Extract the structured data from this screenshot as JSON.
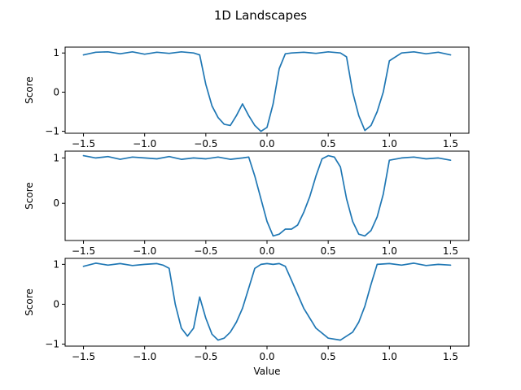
{
  "figure": {
    "title": "1D Landscapes"
  },
  "colors": {
    "series": "#1f77b4"
  },
  "chart_data": [
    {
      "type": "line",
      "xlabel": "",
      "ylabel": "Score",
      "xlim": [
        -1.65,
        1.65
      ],
      "ylim": [
        -1.05,
        1.15
      ],
      "xticks": [
        -1.5,
        -1.0,
        -0.5,
        0.0,
        0.5,
        1.0,
        1.5
      ],
      "xtick_labels": [
        "−1.5",
        "−1.0",
        "−0.5",
        "0.0",
        "0.5",
        "1.0",
        "1.5"
      ],
      "yticks": [
        -1,
        0,
        1
      ],
      "ytick_labels": [
        "−1",
        "0",
        "1"
      ],
      "series": [
        {
          "x": [
            -1.5,
            -1.4,
            -1.3,
            -1.2,
            -1.1,
            -1.0,
            -0.9,
            -0.8,
            -0.7,
            -0.6,
            -0.55,
            -0.5,
            -0.45,
            -0.4,
            -0.35,
            -0.3,
            -0.25,
            -0.2,
            -0.15,
            -0.1,
            -0.05,
            0.0,
            0.05,
            0.1,
            0.15,
            0.2,
            0.3,
            0.4,
            0.5,
            0.6,
            0.65,
            0.7,
            0.75,
            0.8,
            0.85,
            0.9,
            0.95,
            1.0,
            1.1,
            1.2,
            1.3,
            1.4,
            1.5
          ],
          "y": [
            0.95,
            1.02,
            1.03,
            0.98,
            1.03,
            0.97,
            1.02,
            0.99,
            1.03,
            1.0,
            0.95,
            0.2,
            -0.35,
            -0.65,
            -0.82,
            -0.85,
            -0.6,
            -0.3,
            -0.6,
            -0.85,
            -1.0,
            -0.9,
            -0.3,
            0.6,
            0.98,
            1.0,
            1.02,
            0.99,
            1.03,
            1.0,
            0.9,
            0.0,
            -0.6,
            -0.98,
            -0.85,
            -0.5,
            0.0,
            0.8,
            1.0,
            1.03,
            0.98,
            1.02,
            0.95
          ]
        }
      ]
    },
    {
      "type": "line",
      "xlabel": "",
      "ylabel": "Score",
      "xlim": [
        -1.65,
        1.65
      ],
      "ylim": [
        -0.82,
        1.15
      ],
      "xticks": [
        -1.5,
        -1.0,
        -0.5,
        0.0,
        0.5,
        1.0,
        1.5
      ],
      "xtick_labels": [
        "−1.5",
        "−1.0",
        "−0.5",
        "0.0",
        "0.5",
        "1.0",
        "1.5"
      ],
      "yticks": [
        0,
        1
      ],
      "ytick_labels": [
        "0",
        "1"
      ],
      "series": [
        {
          "x": [
            -1.5,
            -1.4,
            -1.3,
            -1.2,
            -1.1,
            -1.0,
            -0.9,
            -0.8,
            -0.7,
            -0.6,
            -0.5,
            -0.4,
            -0.3,
            -0.2,
            -0.15,
            -0.1,
            -0.05,
            0.0,
            0.05,
            0.1,
            0.15,
            0.2,
            0.25,
            0.3,
            0.35,
            0.4,
            0.45,
            0.5,
            0.55,
            0.6,
            0.65,
            0.7,
            0.75,
            0.8,
            0.85,
            0.9,
            0.95,
            1.0,
            1.1,
            1.2,
            1.3,
            1.4,
            1.5
          ],
          "y": [
            1.05,
            1.0,
            1.03,
            0.97,
            1.02,
            1.0,
            0.98,
            1.03,
            0.97,
            1.0,
            0.98,
            1.02,
            0.97,
            1.0,
            1.02,
            0.6,
            0.1,
            -0.4,
            -0.72,
            -0.68,
            -0.57,
            -0.57,
            -0.48,
            -0.2,
            0.15,
            0.6,
            0.98,
            1.05,
            1.02,
            0.8,
            0.1,
            -0.4,
            -0.68,
            -0.72,
            -0.6,
            -0.3,
            0.2,
            0.95,
            1.0,
            1.02,
            0.98,
            1.0,
            0.95
          ]
        }
      ]
    },
    {
      "type": "line",
      "xlabel": "Value",
      "ylabel": "Score",
      "xlim": [
        -1.65,
        1.65
      ],
      "ylim": [
        -1.05,
        1.15
      ],
      "xticks": [
        -1.5,
        -1.0,
        -0.5,
        0.0,
        0.5,
        1.0,
        1.5
      ],
      "xtick_labels": [
        "−1.5",
        "−1.0",
        "−0.5",
        "0.0",
        "0.5",
        "1.0",
        "1.5"
      ],
      "yticks": [
        -1,
        0,
        1
      ],
      "ytick_labels": [
        "−1",
        "0",
        "1"
      ],
      "series": [
        {
          "x": [
            -1.5,
            -1.4,
            -1.3,
            -1.2,
            -1.1,
            -1.0,
            -0.9,
            -0.85,
            -0.8,
            -0.75,
            -0.7,
            -0.65,
            -0.6,
            -0.55,
            -0.5,
            -0.45,
            -0.4,
            -0.35,
            -0.3,
            -0.25,
            -0.2,
            -0.15,
            -0.1,
            -0.05,
            0.0,
            0.05,
            0.1,
            0.15,
            0.2,
            0.3,
            0.4,
            0.5,
            0.6,
            0.7,
            0.75,
            0.8,
            0.85,
            0.9,
            1.0,
            1.1,
            1.2,
            1.3,
            1.4,
            1.5
          ],
          "y": [
            0.95,
            1.03,
            0.98,
            1.02,
            0.97,
            1.0,
            1.02,
            0.98,
            0.9,
            0.0,
            -0.6,
            -0.8,
            -0.6,
            0.18,
            -0.35,
            -0.75,
            -0.9,
            -0.85,
            -0.7,
            -0.45,
            -0.1,
            0.4,
            0.9,
            1.0,
            1.02,
            1.0,
            1.02,
            0.95,
            0.6,
            -0.1,
            -0.6,
            -0.85,
            -0.9,
            -0.7,
            -0.45,
            -0.05,
            0.5,
            1.0,
            1.02,
            0.98,
            1.03,
            0.97,
            1.0,
            0.98
          ]
        }
      ]
    }
  ]
}
